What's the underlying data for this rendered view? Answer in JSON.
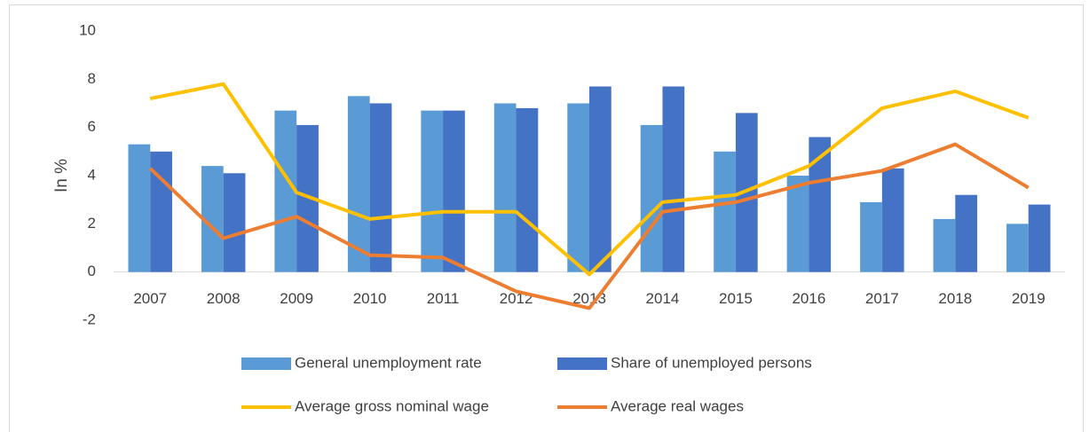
{
  "chart_data": {
    "type": "bar",
    "y_label": "In %",
    "categories": [
      "2007",
      "2008",
      "2009",
      "2010",
      "2011",
      "2012",
      "2013",
      "2014",
      "2015",
      "2016",
      "2017",
      "2018",
      "2019"
    ],
    "series": [
      {
        "name": "General unemployment rate",
        "type": "bar",
        "color": "#5b9bd5",
        "values": [
          5.3,
          4.4,
          6.7,
          7.3,
          6.7,
          7.0,
          7.0,
          6.1,
          5.0,
          4.0,
          2.9,
          2.2,
          2.0
        ]
      },
      {
        "name": "Share of unemployed persons",
        "type": "bar",
        "color": "#4472c4",
        "values": [
          5.0,
          4.1,
          6.1,
          7.0,
          6.7,
          6.8,
          7.7,
          7.7,
          6.6,
          5.6,
          4.3,
          3.2,
          2.8
        ]
      },
      {
        "name": "Average gross nominal wage",
        "type": "line",
        "color": "#ffc000",
        "values": [
          7.2,
          7.8,
          3.3,
          2.2,
          2.5,
          2.5,
          -0.1,
          2.9,
          3.2,
          4.4,
          6.8,
          7.5,
          6.4
        ]
      },
      {
        "name": "Average real wages",
        "type": "line",
        "color": "#ed7d31",
        "values": [
          4.3,
          1.4,
          2.3,
          0.7,
          0.6,
          -0.8,
          -1.5,
          2.5,
          2.9,
          3.7,
          4.2,
          5.3,
          3.5
        ]
      }
    ],
    "ylim": [
      -2,
      10
    ],
    "yticks": [
      -2,
      0,
      2,
      4,
      6,
      8,
      10
    ],
    "grid": false,
    "legend": "bottom"
  }
}
